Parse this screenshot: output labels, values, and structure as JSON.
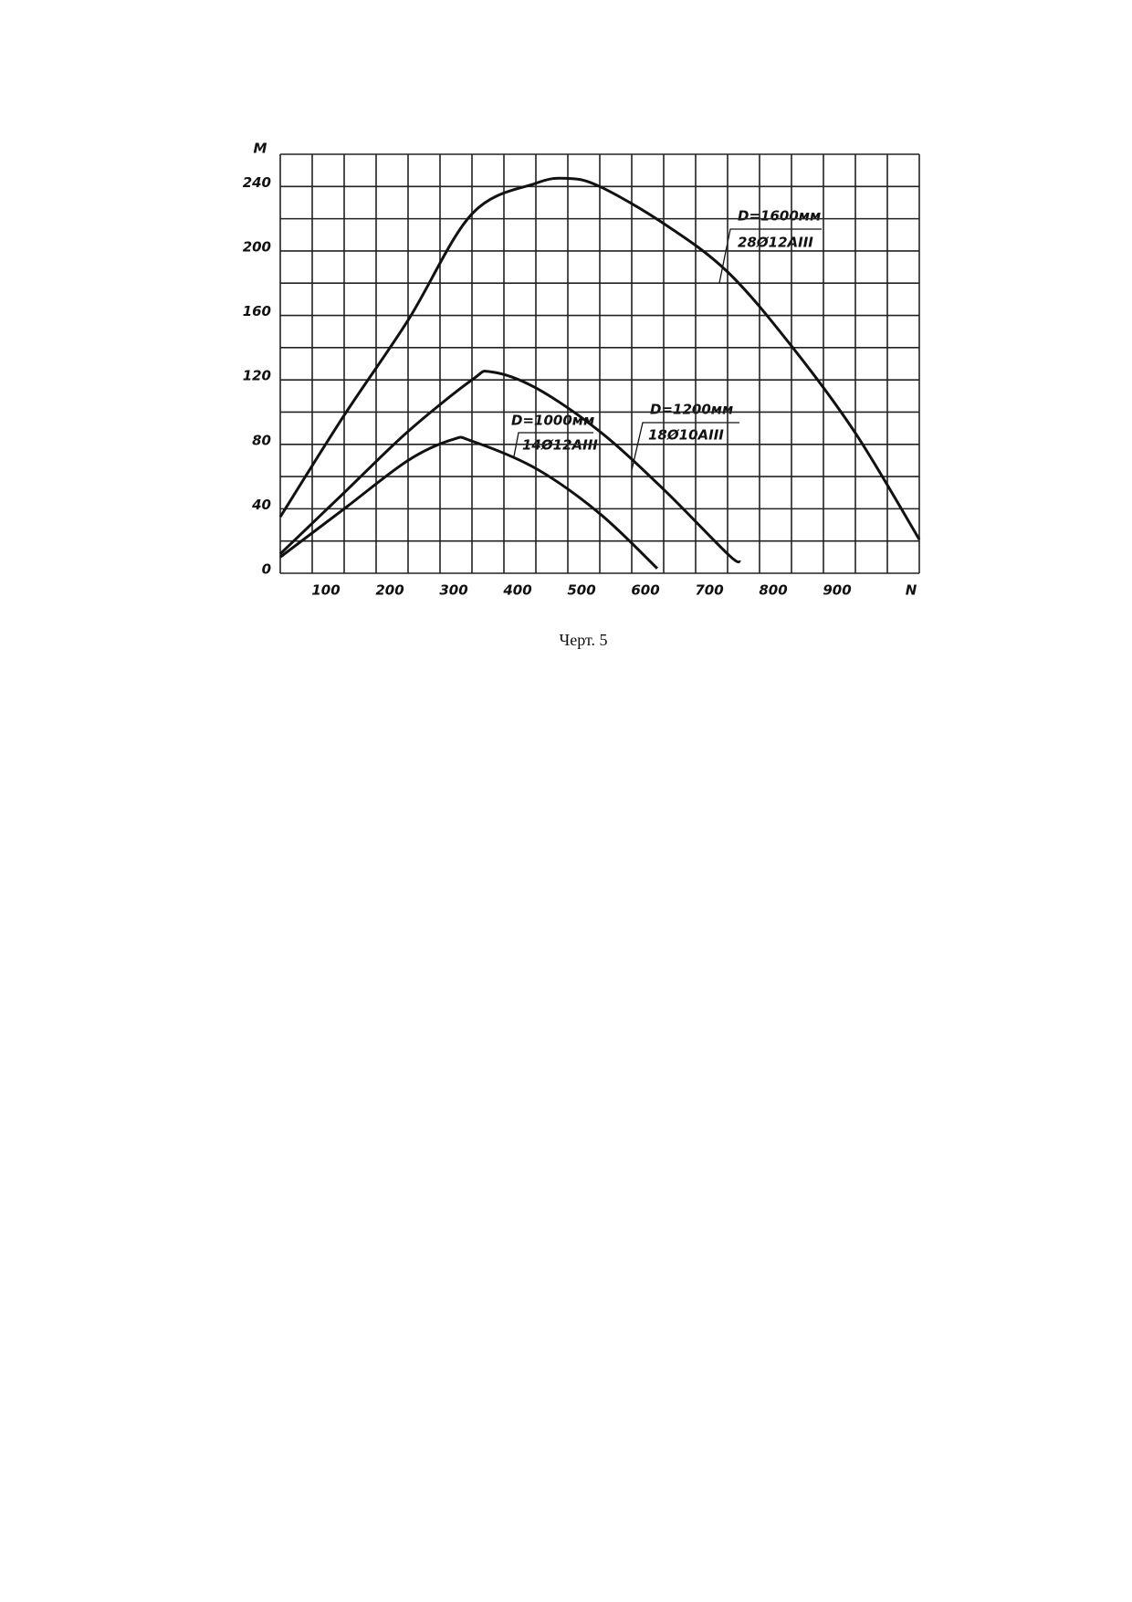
{
  "chart_data": {
    "type": "line",
    "x_label": "N",
    "y_label": "M",
    "xlim": [
      0,
      1000
    ],
    "ylim": [
      0,
      260
    ],
    "xticks": [
      100,
      200,
      300,
      400,
      500,
      600,
      700,
      800,
      900
    ],
    "yticks": [
      0,
      40,
      80,
      120,
      160,
      200,
      240
    ],
    "xgrid": [
      0,
      50,
      100,
      150,
      200,
      250,
      300,
      350,
      400,
      450,
      500,
      550,
      600,
      650,
      700,
      750,
      800,
      850,
      900,
      950,
      1000
    ],
    "ygrid": [
      0,
      20,
      40,
      60,
      80,
      100,
      120,
      140,
      160,
      180,
      200,
      220,
      240,
      260
    ],
    "grid": true,
    "color": "#111111",
    "series": [
      {
        "name": "D=1600мм",
        "reinforcement": "28Ø12AIII",
        "x": [
          0,
          100,
          200,
          300,
          400,
          450,
          500,
          600,
          700,
          800,
          900,
          1000
        ],
        "values": [
          35,
          98,
          157,
          223,
          242,
          245,
          240,
          217,
          187,
          141,
          87,
          21
        ]
      },
      {
        "name": "D=1200мм",
        "reinforcement": "18Ø10AIII",
        "x": [
          0,
          100,
          200,
          300,
          330,
          400,
          500,
          600,
          700,
          720
        ],
        "values": [
          12,
          50,
          88,
          120,
          125,
          115,
          88,
          52,
          12,
          7
        ]
      },
      {
        "name": "D=1000мм",
        "reinforcement": "14Ø12AIII",
        "x": [
          0,
          100,
          200,
          270,
          300,
          400,
          500,
          590
        ],
        "values": [
          10,
          40,
          70,
          83,
          82,
          65,
          37,
          3
        ]
      }
    ]
  },
  "caption": "Черт. 5"
}
